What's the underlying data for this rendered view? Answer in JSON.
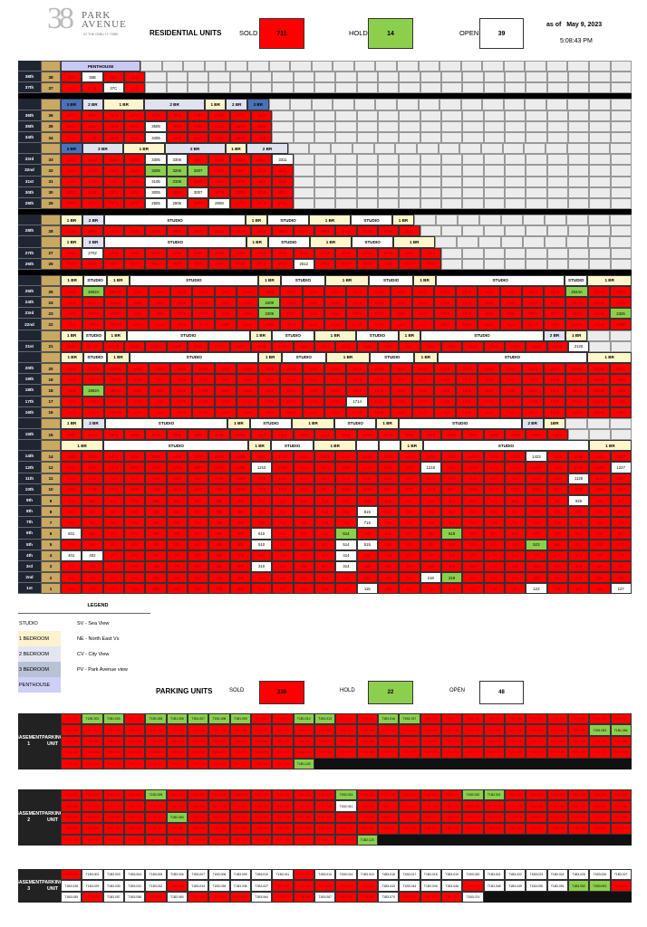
{
  "header": {
    "logo_number": "38",
    "logo_line1": "PARK",
    "logo_line2": "AVENUE",
    "logo_tagline": "AT THE CEBU I.T. PARK",
    "title": "RESIDENTIAL UNITS",
    "sold_label": "SOLD",
    "sold_value": "711",
    "hold_label": "HOLD",
    "hold_value": "14",
    "open_label": "OPEN",
    "open_value": "39",
    "as_of_label": "as of",
    "date": "May 9, 2023",
    "time": "5:08:43 PM"
  },
  "colors": {
    "sold": "#ff0000",
    "hold": "#8ccf4d",
    "open": "#ffffff",
    "studio": "#ffffff",
    "one_br": "#fff6cc",
    "two_br": "#dfe3f0",
    "three_br": "#4a72b8",
    "penthouse": "#c9c9f5"
  },
  "residential": {
    "sections": [
      {
        "bar_after": true,
        "groups": [
          [
            "PENTHOUSE",
            "ph",
            4
          ]
        ],
        "floors": [
          {
            "label": "38th",
            "num": "38",
            "units": "38A 38B 38C 38D",
            "open": [
              "38B"
            ],
            "hold": []
          },
          {
            "label": "37th",
            "num": "37",
            "units": "37A 37B 37C 37D",
            "open": [
              "37C"
            ],
            "hold": []
          }
        ]
      },
      {
        "bar_after": false,
        "groups": [
          [
            "3 BR",
            "3br",
            1
          ],
          [
            "2 BR",
            "2br",
            1
          ],
          [
            "1 BR",
            "1br",
            2
          ],
          [
            "2 BR",
            "2br",
            3
          ],
          [
            "1 BR",
            "1br",
            1
          ],
          [
            "2 BR",
            "2br",
            1
          ],
          [
            "3 BR",
            "3br",
            1
          ]
        ],
        "floors": [
          {
            "label": "36th",
            "num": "36",
            "units": "3601-3610",
            "open": [],
            "hold": []
          },
          {
            "label": "35th",
            "num": "35",
            "units": "3501-3510",
            "open": [
              "3505"
            ],
            "hold": []
          },
          {
            "label": "34th",
            "num": "34",
            "units": "3401-3410",
            "open": [
              "3405"
            ],
            "hold": []
          }
        ]
      },
      {
        "bar_after": true,
        "groups": [
          [
            "3 BR",
            "3br",
            1
          ],
          [
            "2 BR",
            "2br",
            2
          ],
          [
            "1 BR",
            "1br",
            2
          ],
          [
            "2 BR",
            "2br",
            3
          ],
          [
            "1 BR",
            "1br",
            1
          ],
          [
            "2 BR",
            "2br",
            2
          ]
        ],
        "floors": [
          {
            "label": "33rd",
            "num": "33",
            "units": "3301-3311",
            "open": [
              "3305",
              "3306",
              "3311"
            ],
            "hold": []
          },
          {
            "label": "32nd",
            "num": "32",
            "units": "3201-3211",
            "open": [],
            "hold": [
              "3205",
              "3206",
              "3207"
            ]
          },
          {
            "label": "31st",
            "num": "31",
            "units": "3101-3111",
            "open": [
              "3105"
            ],
            "hold": [
              "3106"
            ]
          },
          {
            "label": "30th",
            "num": "30",
            "units": "3001-3011",
            "open": [
              "3005",
              "3007"
            ],
            "hold": []
          },
          {
            "label": "29th",
            "num": "29",
            "units": "2901-2911",
            "open": [
              "2905",
              "2906",
              "2908"
            ],
            "hold": []
          }
        ]
      },
      {
        "bar_after": false,
        "groups": [
          [
            "1 BR",
            "1br",
            1
          ],
          [
            "2 BR",
            "2br",
            1
          ],
          [
            "STUDIO",
            "studio",
            7
          ],
          [
            "1 BR",
            "1br",
            1
          ],
          [
            "STUDIO",
            "studio",
            2
          ],
          [
            "1 BR",
            "1br",
            2
          ],
          [
            "STUDIO",
            "studio",
            2
          ],
          [
            "1 BR",
            "1br",
            1
          ]
        ],
        "floors": [
          {
            "label": "28th",
            "num": "28",
            "units": "2801-2817",
            "open": [],
            "hold": []
          }
        ]
      },
      {
        "bar_after": true,
        "groups": [
          [
            "1 BR",
            "1br",
            1
          ],
          [
            "2 BR",
            "2br",
            1
          ],
          [
            "STUDIO",
            "studio",
            7
          ],
          [
            "1 BR",
            "1br",
            1
          ],
          [
            "STUDIO",
            "studio",
            2
          ],
          [
            "1 BR",
            "1br",
            2
          ],
          [
            "STUDIO",
            "studio",
            2
          ],
          [
            "1 BR",
            "1br",
            2
          ]
        ],
        "floors": [
          {
            "label": "27th",
            "num": "27",
            "units": "2701-2718",
            "open": [
              "2702"
            ],
            "hold": []
          },
          {
            "label": "26th",
            "num": "26",
            "units": "2601-2618",
            "open": [
              "2612"
            ],
            "hold": []
          }
        ]
      },
      {
        "bar_after": false,
        "groups": [
          [
            "1 BR",
            "1br",
            1
          ],
          [
            "STUDIO",
            "studio",
            1
          ],
          [
            "1 BR",
            "1br",
            1
          ],
          [
            "STUDIO",
            "studio",
            6
          ],
          [
            "1 BR",
            "1br",
            1
          ],
          [
            "STUDIO",
            "studio",
            2
          ],
          [
            "1 BR",
            "1br",
            2
          ],
          [
            "STUDIO",
            "studio",
            2
          ],
          [
            "1 BR",
            "1br",
            1
          ],
          [
            "STUDIO",
            "studio",
            6
          ],
          [
            "STUDIO",
            "studio",
            1
          ],
          [
            "1 BR",
            "1br",
            2
          ]
        ],
        "floors": [
          {
            "label": "25th",
            "num": "25",
            "units": "2501 2502A 2502B 2503-2512 2514-2523 2524A 2524B 2525",
            "open": [],
            "hold": [
              "2502A",
              "2524A"
            ]
          },
          {
            "label": "24th",
            "num": "24",
            "units": "2401 2402A 2402B 2403-2412 2414-2423 2424A 2424B 2425",
            "open": [],
            "hold": [
              "2409"
            ]
          },
          {
            "label": "23rd",
            "num": "23",
            "units": "2301 2302A 2302B 2303-2312 2314-2323 2324A 2324B 2325",
            "open": [],
            "hold": [
              "2309",
              "2325"
            ]
          },
          {
            "label": "22nd",
            "num": "22",
            "units": "2201 2202A 2202B 2203-2212 2214-2223 2224A 2224B 2225",
            "open": [],
            "hold": []
          }
        ]
      },
      {
        "bar_after": false,
        "groups": [
          [
            "1 BR",
            "1br",
            1
          ],
          [
            "STUDIO",
            "studio",
            1
          ],
          [
            "1 BR",
            "1br",
            1
          ],
          [
            "STUDIO",
            "studio",
            6
          ],
          [
            "1 BR",
            "1br",
            1
          ],
          [
            "STUDIO",
            "studio",
            2
          ],
          [
            "1 BR",
            "1br",
            2
          ],
          [
            "STUDIO",
            "studio",
            2
          ],
          [
            "1 BR",
            "1br",
            1
          ],
          [
            "STUDIO",
            "studio",
            6
          ],
          [
            "2 BR",
            "2br",
            1
          ],
          [
            "1 BR",
            "1br",
            1
          ]
        ],
        "floors": [
          {
            "label": "21st",
            "num": "21",
            "units": "2101 2102A 2102B 2103-2112 2114-2123 2124 2125",
            "open": [
              "2125"
            ],
            "hold": []
          }
        ]
      },
      {
        "bar_after": false,
        "groups": [
          [
            "1 BR",
            "1br",
            1
          ],
          [
            "STUDIO",
            "studio",
            1
          ],
          [
            "1 BR",
            "1br",
            1
          ],
          [
            "STUDIO",
            "studio",
            6
          ],
          [
            "1 BR",
            "1br",
            1
          ],
          [
            "STUDIO",
            "studio",
            2
          ],
          [
            "1 BR",
            "1br",
            2
          ],
          [
            "STUDIO",
            "studio",
            2
          ],
          [
            "1 BR",
            "1br",
            1
          ],
          [
            "STUDIO",
            "studio",
            7
          ],
          [
            "1 BR",
            "1br",
            2
          ]
        ],
        "floors": [
          {
            "label": "20th",
            "num": "20",
            "units": "2001 2002A 2002B 2003-2012 2014-2023 2024A 2024B 2025",
            "open": [],
            "hold": []
          },
          {
            "label": "19th",
            "num": "19",
            "units": "1901 1902A 1902B 1903-1912 1914-1923 1924A 1924B 1925",
            "open": [],
            "hold": []
          },
          {
            "label": "18th",
            "num": "18",
            "units": "1801 1802A 1802B 1803-1812 1814-1823 1824A 1824B 1825",
            "open": [],
            "hold": [
              "1802A"
            ]
          },
          {
            "label": "17th",
            "num": "17",
            "units": "1701 1702A 1702B 1703-1712 1714-1723 1724A 1724B 1725",
            "open": [
              "1714"
            ],
            "hold": []
          },
          {
            "label": "16th",
            "num": "16",
            "units": "1601 1602A 1602B 1603-1612 1614-1623 1624A 1624B 1625",
            "open": [],
            "hold": []
          }
        ]
      },
      {
        "bar_after": false,
        "groups": [
          [
            "1 BR",
            "1br",
            1
          ],
          [
            "2 BR",
            "2br",
            1
          ],
          [
            "STUDIO",
            "studio",
            6
          ],
          [
            "1 BR",
            "1br",
            1
          ],
          [
            "STUDIO",
            "studio",
            2
          ],
          [
            "1 BR",
            "1br",
            2
          ],
          [
            "STUDIO",
            "studio",
            2
          ],
          [
            "1 BR",
            "1br",
            1
          ],
          [
            "STUDIO",
            "studio",
            6
          ],
          [
            "2 BR",
            "2br",
            1
          ],
          [
            "1BR",
            "1br",
            1
          ]
        ],
        "floors": [
          {
            "label": "15th",
            "num": "15",
            "units": "1501-1512 1514-1525",
            "open": [],
            "hold": []
          }
        ]
      },
      {
        "bar_after": false,
        "groups": [
          [
            "1 BR",
            "1br",
            2
          ],
          [
            "STUDIO",
            "studio",
            7
          ],
          [
            "1 BR",
            "1br",
            1
          ],
          [
            "STUDIO",
            "studio",
            2
          ],
          [
            "1 BR",
            "1br",
            2
          ],
          [
            "",
            "blank",
            1
          ],
          [
            "",
            "blank",
            1
          ],
          [
            "1 BR",
            "1br",
            1
          ],
          [
            "STUDIO",
            "studio",
            8
          ],
          [
            "1 BR",
            "1br",
            2
          ]
        ],
        "floors": [
          {
            "label": "14th",
            "num": "14",
            "units": "1401-1427",
            "open": [
              "1423"
            ],
            "hold": []
          },
          {
            "label": "12th",
            "num": "12",
            "units": "1201-1227",
            "open": [
              "1210",
              "1218",
              "1227"
            ],
            "hold": []
          },
          {
            "label": "11th",
            "num": "11",
            "units": "1101-1127",
            "open": [
              "1125"
            ],
            "hold": []
          },
          {
            "label": "10th",
            "num": "10",
            "units": "1001-1027",
            "open": [],
            "hold": []
          },
          {
            "label": "9th",
            "num": "9",
            "units": "901-927",
            "open": [
              "925"
            ],
            "hold": []
          },
          {
            "label": "8th",
            "num": "8",
            "units": "801-827",
            "open": [
              "815"
            ],
            "hold": []
          },
          {
            "label": "7th",
            "num": "7",
            "units": "701-727",
            "open": [
              "715"
            ],
            "hold": []
          },
          {
            "label": "6th",
            "num": "6",
            "units": "601-627",
            "open": [
              "601",
              "610"
            ],
            "hold": [
              "614",
              "619"
            ]
          },
          {
            "label": "5th",
            "num": "5",
            "units": "501-527",
            "open": [
              "510",
              "514",
              "515"
            ],
            "hold": [
              "523"
            ]
          },
          {
            "label": "4th",
            "num": "4",
            "units": "401-427",
            "open": [
              "401",
              "402",
              "414"
            ],
            "hold": []
          },
          {
            "label": "3rd",
            "num": "3",
            "units": "301-327",
            "open": [
              "310",
              "314"
            ],
            "hold": []
          },
          {
            "label": "2nd",
            "num": "2",
            "units": "201-227",
            "open": [
              "218"
            ],
            "hold": [
              "219"
            ]
          },
          {
            "label": "1st",
            "num": "1",
            "units": "101-127",
            "open": [
              "115",
              "123",
              "127"
            ],
            "hold": []
          }
        ]
      }
    ]
  },
  "legend": {
    "title": "LEGEND",
    "items": [
      {
        "type": "STUDIO",
        "view": "SV - Sea View"
      },
      {
        "type": "1 BEDROOM",
        "view": "NE - North East Vs"
      },
      {
        "type": "2 BEDROOM",
        "view": "CV - City View"
      },
      {
        "type": "3 BEDROOM",
        "view": "PV - Park Avenue view"
      },
      {
        "type": "PENTHOUSE",
        "view": ""
      }
    ]
  },
  "parking": {
    "title": "PARKING UNITS",
    "sold_label": "SOLD",
    "sold_value": "330",
    "hold_label": "HOLD",
    "hold_value": "22",
    "open_label": "OPEN",
    "open_value": "48",
    "basements": [
      {
        "line1": "BASEMENT 1",
        "line2": "PARKING UNIT",
        "prefix": "T1B1.",
        "rows": [
          {
            "start": 1,
            "status": "SHHSHHHHHSSHHSSHHSSSSSSSSSS"
          },
          {
            "start": 28,
            "status": "SSSSSSSSSSSSSSSSSSSSSSSSSHH"
          },
          {
            "start": 55,
            "status": "SSSSSSSSSSSSSSSSSSSSSSSSSSS"
          },
          {
            "start": 82,
            "status": "SSSSSSSSSSSSSSSSSSSSSSSSSSS"
          },
          {
            "start": 109,
            "status": "SSSSSSSSSSSH"
          }
        ]
      },
      {
        "line1": "BASEMENT 2",
        "line2": "PARKING UNIT",
        "prefix": "T1B2.",
        "rows": [
          {
            "start": 1,
            "status": "SSSSHSSSSSSSSHSSSSSHHSSSSSS"
          },
          {
            "start": 28,
            "status": "SSSSSSSSSSSSSOSSSSSSSSSSSSS"
          },
          {
            "start": 55,
            "status": "SSSSSHSSSSSSSSSSSSSSSSSSSSS"
          },
          {
            "start": 82,
            "status": "SSSSSSSSSSSSSSSSSSSSSSSSSSS"
          },
          {
            "start": 109,
            "status": "SSSSSSSSSSSSSSH"
          }
        ]
      },
      {
        "line1": "BASEMENT 3",
        "line2": "PARKING UNIT",
        "prefix": "T1B3.",
        "rows": [
          {
            "start": 1,
            "status": "SOOOOOOOOOOSOOOOOOOOOOOOOOO"
          },
          {
            "start": 28,
            "status": "OOOOOSOOOOSSSSSOOOOSOOOOHHS"
          },
          {
            "start": 55,
            "status": "OSOOSOSSSOSSOSSOSSSO"
          }
        ]
      }
    ]
  }
}
